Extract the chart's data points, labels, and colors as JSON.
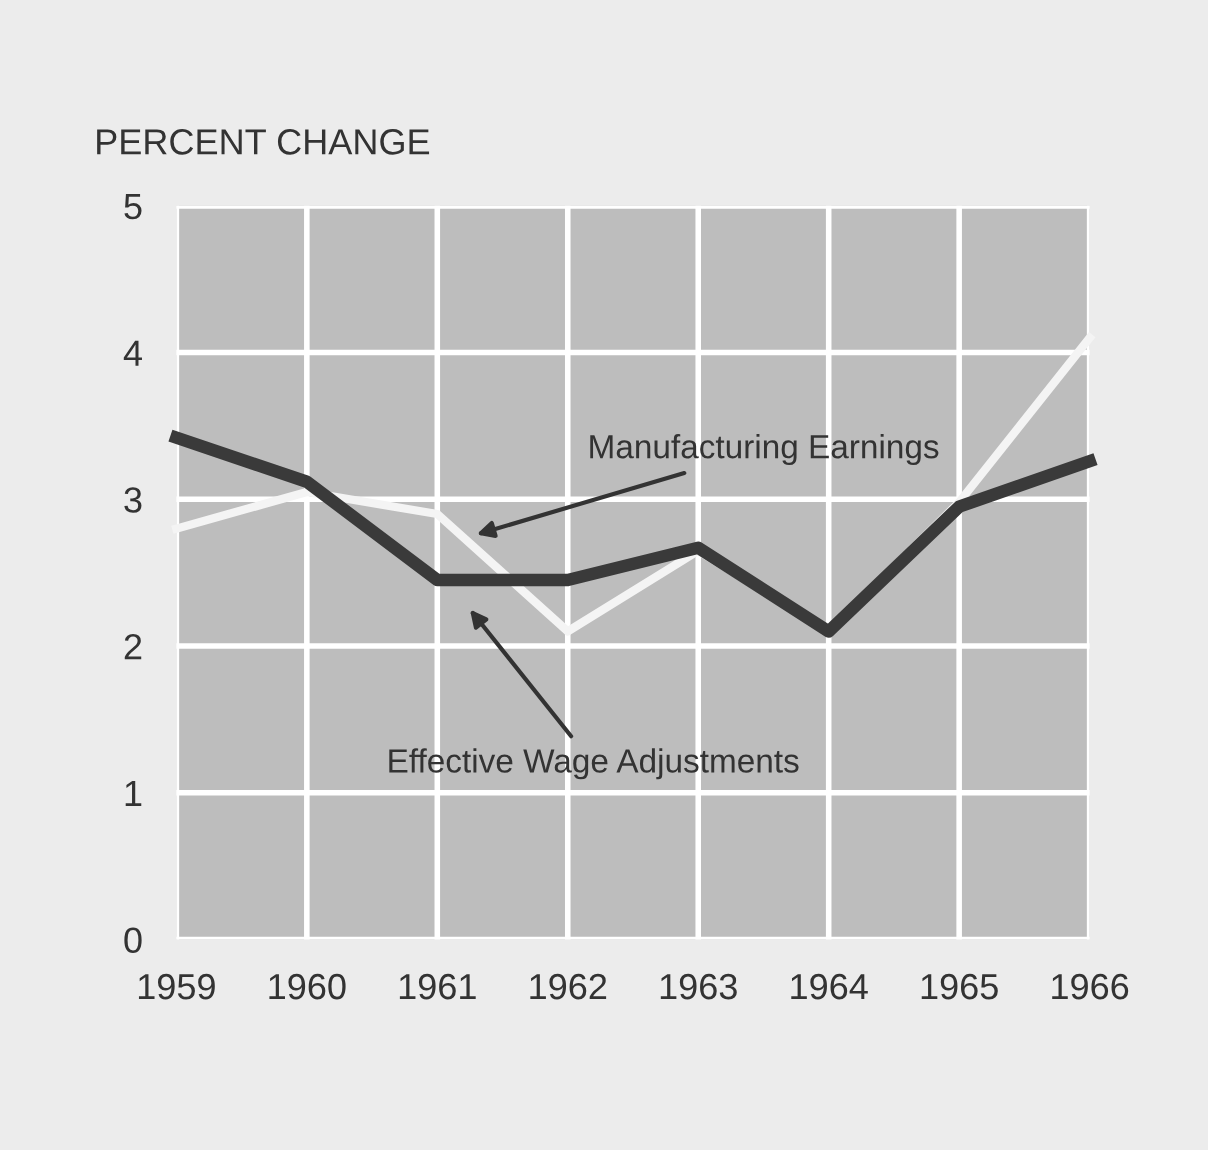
{
  "chart_data": {
    "type": "line",
    "ylabel": "PERCENT CHANGE",
    "x": [
      1959,
      1960,
      1961,
      1962,
      1963,
      1964,
      1965,
      1966
    ],
    "series": [
      {
        "name": "Manufacturing Earnings",
        "color": "#f4f4f4",
        "values": [
          2.8,
          3.05,
          2.9,
          2.1,
          2.65,
          2.1,
          2.98,
          4.1
        ]
      },
      {
        "name": "Effective Wage Adjustments",
        "color": "#3a3a3a",
        "values": [
          3.42,
          3.12,
          2.45,
          2.45,
          2.67,
          2.1,
          2.95,
          3.26
        ]
      }
    ],
    "xlim": [
      1959,
      1966
    ],
    "xticks": [
      1959,
      1960,
      1961,
      1962,
      1963,
      1964,
      1965,
      1966
    ],
    "ylim": [
      0,
      5
    ],
    "yticks": [
      0,
      1,
      2,
      3,
      4,
      5
    ],
    "grid": true,
    "legend": false,
    "marker": "none",
    "line_style": "solid"
  }
}
